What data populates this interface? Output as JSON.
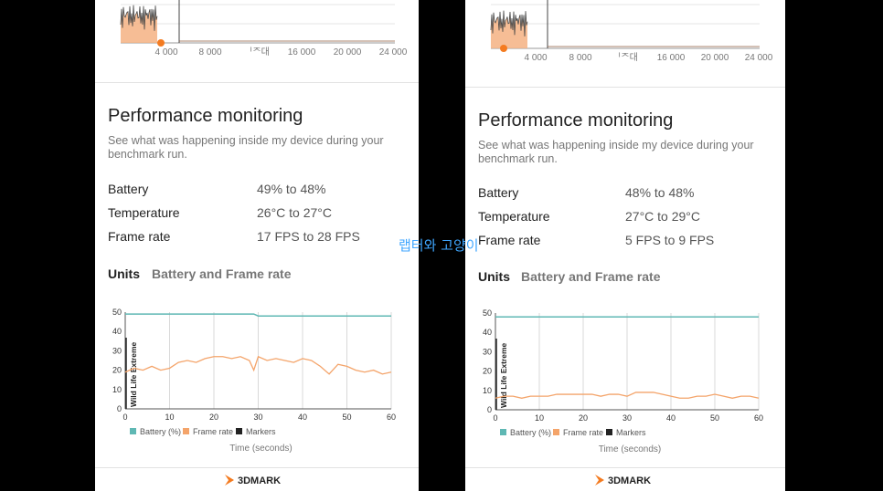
{
  "histogram": {
    "x_ticks": [
      "4 000",
      "8 000",
      "16 000",
      "20 000",
      "24 000"
    ],
    "overlap_label": "ᅵᄌ대"
  },
  "panels": [
    {
      "title": "Performance monitoring",
      "subtitle": "See what was happening inside my device during your benchmark run.",
      "stats": [
        {
          "label": "Battery",
          "value": "49% to 48%"
        },
        {
          "label": "Temperature",
          "value": "26°C to 27°C"
        },
        {
          "label": "Frame rate",
          "value": "17 FPS to 28 FPS"
        }
      ],
      "tabs": [
        "Units",
        "Battery and Frame rate"
      ],
      "legend": [
        "Battery (%)",
        "Frame rate",
        "Markers"
      ],
      "xlabel": "Time (seconds)",
      "marker_label": "Wild Life Extreme",
      "logo": "3DMARK"
    },
    {
      "title": "Performance monitoring",
      "subtitle": "See what was happening inside my device during your benchmark run.",
      "stats": [
        {
          "label": "Battery",
          "value": "48% to 48%"
        },
        {
          "label": "Temperature",
          "value": "27°C to 29°C"
        },
        {
          "label": "Frame rate",
          "value": "5 FPS to 9 FPS"
        }
      ],
      "tabs": [
        "Units",
        "Battery and Frame rate"
      ],
      "legend": [
        "Battery (%)",
        "Frame rate",
        "Markers"
      ],
      "xlabel": "Time (seconds)",
      "marker_label": "Wild Life Extreme",
      "logo": "3DMARK"
    }
  ],
  "watermark": "랩터와 고양이",
  "chart_data": [
    {
      "type": "line",
      "x": [
        0,
        2,
        4,
        6,
        8,
        10,
        12,
        14,
        16,
        18,
        20,
        22,
        24,
        26,
        28,
        29,
        30,
        32,
        34,
        36,
        38,
        40,
        42,
        44,
        46,
        48,
        50,
        52,
        54,
        56,
        58,
        60
      ],
      "series": [
        {
          "name": "Battery (%)",
          "color": "#5fb8b4",
          "values": [
            49,
            49,
            49,
            49,
            49,
            49,
            49,
            49,
            49,
            49,
            49,
            49,
            49,
            49,
            49,
            49,
            48,
            48,
            48,
            48,
            48,
            48,
            48,
            48,
            48,
            48,
            48,
            48,
            48,
            48,
            48,
            48
          ]
        },
        {
          "name": "Frame rate",
          "color": "#f4a46a",
          "values": [
            19,
            21,
            20,
            22,
            20,
            21,
            24,
            25,
            24,
            26,
            27,
            27,
            26,
            27,
            25,
            20,
            27,
            25,
            26,
            25,
            24,
            26,
            25,
            22,
            18,
            23,
            22,
            20,
            19,
            20,
            18,
            19
          ]
        }
      ],
      "markers": [
        0
      ],
      "xlim": [
        0,
        60
      ],
      "ylim": [
        0,
        50
      ],
      "x_ticks": [
        0,
        10,
        20,
        30,
        40,
        50,
        60
      ],
      "y_ticks": [
        0,
        10,
        20,
        30,
        40,
        50
      ],
      "xlabel": "Time (seconds)",
      "legend": [
        "Battery (%)",
        "Frame rate",
        "Markers"
      ],
      "grid": true
    },
    {
      "type": "line",
      "x": [
        0,
        2,
        4,
        6,
        8,
        10,
        12,
        14,
        16,
        18,
        20,
        22,
        24,
        26,
        28,
        30,
        32,
        34,
        36,
        38,
        40,
        42,
        44,
        46,
        48,
        50,
        52,
        54,
        56,
        58,
        60
      ],
      "series": [
        {
          "name": "Battery (%)",
          "color": "#5fb8b4",
          "values": [
            48,
            48,
            48,
            48,
            48,
            48,
            48,
            48,
            48,
            48,
            48,
            48,
            48,
            48,
            48,
            48,
            48,
            48,
            48,
            48,
            48,
            48,
            48,
            48,
            48,
            48,
            48,
            48,
            48,
            48,
            48
          ]
        },
        {
          "name": "Frame rate",
          "color": "#f4a46a",
          "values": [
            6,
            7,
            7,
            6,
            7,
            7,
            7,
            8,
            8,
            8,
            8,
            8,
            7,
            8,
            8,
            7,
            9,
            9,
            9,
            8,
            7,
            6,
            6,
            7,
            7,
            8,
            7,
            6,
            7,
            7,
            6
          ]
        }
      ],
      "markers": [
        0
      ],
      "xlim": [
        0,
        60
      ],
      "ylim": [
        0,
        50
      ],
      "x_ticks": [
        0,
        10,
        20,
        30,
        40,
        50,
        60
      ],
      "y_ticks": [
        0,
        10,
        20,
        30,
        40,
        50
      ],
      "xlabel": "Time (seconds)",
      "legend": [
        "Battery (%)",
        "Frame rate",
        "Markers"
      ],
      "grid": true
    }
  ]
}
